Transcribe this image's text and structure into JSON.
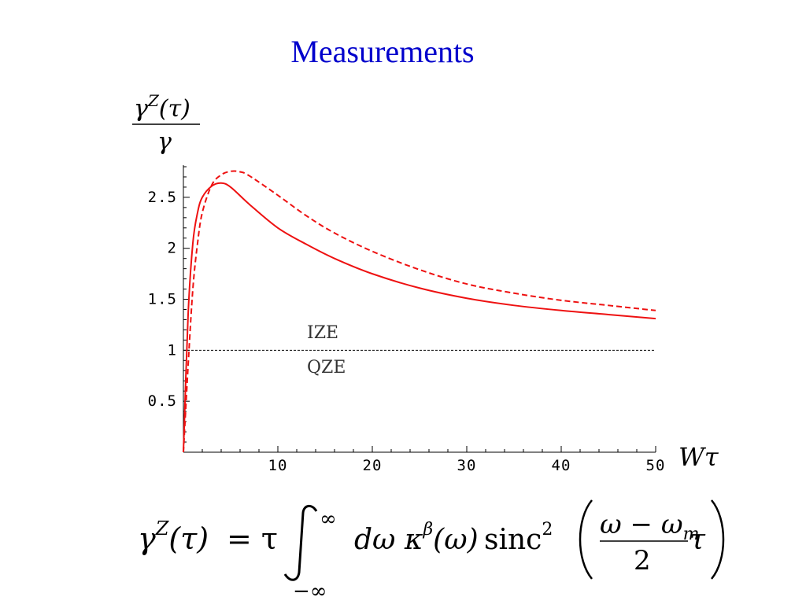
{
  "slide": {
    "title": "Measurements"
  },
  "chart_data": {
    "type": "line",
    "ylabel": "γ^Z(τ) / γ",
    "ylabel_num": "γ",
    "ylabel_sup": "Z",
    "ylabel_arg": "(τ)",
    "ylabel_den": "γ",
    "xlabel": "Wτ",
    "xlim": [
      0,
      50
    ],
    "ylim": [
      0,
      2.8
    ],
    "x_ticks": [
      10,
      20,
      30,
      40,
      50
    ],
    "x_tick_labels": [
      "10",
      "20",
      "30",
      "40",
      "50"
    ],
    "y_ticks": [
      0.5,
      1,
      1.5,
      2,
      2.5
    ],
    "y_tick_labels": [
      "0.5",
      "1",
      "1.5",
      "2",
      "2.5"
    ],
    "reference_line": {
      "y": 1,
      "style": "dashed",
      "color": "#000000"
    },
    "annotations": [
      "IZE",
      "QZE"
    ],
    "colors": {
      "series": "#ee1111",
      "reference": "#000000",
      "title": "#0000cc"
    },
    "series": [
      {
        "style": "solid",
        "x": [
          0,
          0.5,
          1,
          1.5,
          2,
          3,
          4,
          5,
          7,
          10,
          13,
          16,
          20,
          25,
          30,
          35,
          40,
          45,
          50
        ],
        "y": [
          0,
          1.35,
          2.05,
          2.35,
          2.5,
          2.61,
          2.64,
          2.6,
          2.43,
          2.2,
          2.04,
          1.9,
          1.75,
          1.61,
          1.51,
          1.44,
          1.39,
          1.35,
          1.31
        ]
      },
      {
        "style": "dashed",
        "x": [
          0,
          0.5,
          1,
          1.5,
          2,
          3,
          4,
          5,
          6,
          7,
          10,
          13,
          16,
          20,
          25,
          30,
          35,
          40,
          45,
          50
        ],
        "y": [
          0,
          0.85,
          1.6,
          2.05,
          2.35,
          2.62,
          2.72,
          2.755,
          2.75,
          2.71,
          2.52,
          2.32,
          2.15,
          1.97,
          1.79,
          1.65,
          1.56,
          1.49,
          1.44,
          1.39
        ]
      }
    ]
  },
  "formula": {
    "lhs_gamma": "γ",
    "lhs_sup": "Z",
    "lhs_arg": "(τ)",
    "equals_tau": "= τ",
    "int_upper": "∞",
    "int_lower": "−∞",
    "integrand": "dω  κ",
    "kappa_sup": "β",
    "kappa_arg": "(ω)",
    "sinc": "sinc",
    "sinc_sup": "2",
    "frac_num": "ω − ω",
    "frac_num_sub": "m",
    "frac_den": "2",
    "tail": "τ"
  }
}
